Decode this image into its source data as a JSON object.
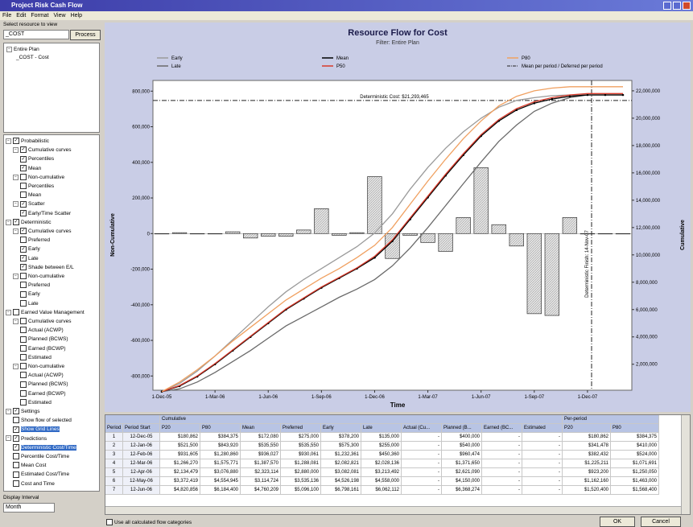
{
  "window": {
    "title": "Project Risk Cash Flow",
    "menu": [
      "File",
      "Edit",
      "Format",
      "View",
      "Help"
    ]
  },
  "left_panel": {
    "filter_label": "Select resource to view",
    "filter_value": "_COST",
    "process_button": "Process",
    "resource_tree": [
      {
        "label": "Entire Plan",
        "level": 0
      },
      {
        "label": "_COST - Cost",
        "level": 1
      }
    ],
    "options": [
      {
        "label": "Probabilistic",
        "level": 0,
        "checked": true
      },
      {
        "label": "Cumulative curves",
        "level": 1,
        "checked": true
      },
      {
        "label": "Percentiles",
        "level": 2,
        "checked": true
      },
      {
        "label": "Mean",
        "level": 2,
        "checked": true
      },
      {
        "label": "Non-cumulative",
        "level": 1,
        "checked": false
      },
      {
        "label": "Percentiles",
        "level": 2,
        "checked": false
      },
      {
        "label": "Mean",
        "level": 2,
        "checked": false
      },
      {
        "label": "Scatter",
        "level": 1,
        "checked": true
      },
      {
        "label": "Early/Time Scatter",
        "level": 2,
        "checked": true
      },
      {
        "label": "Deterministic",
        "level": 0,
        "checked": true
      },
      {
        "label": "Cumulative curves",
        "level": 1,
        "checked": true
      },
      {
        "label": "Preferred",
        "level": 2,
        "checked": false
      },
      {
        "label": "Early",
        "level": 2,
        "checked": true
      },
      {
        "label": "Late",
        "level": 2,
        "checked": true
      },
      {
        "label": "Shade between E/L",
        "level": 2,
        "checked": true
      },
      {
        "label": "Non-cumulative",
        "level": 1,
        "checked": false
      },
      {
        "label": "Preferred",
        "level": 2,
        "checked": false
      },
      {
        "label": "Early",
        "level": 2,
        "checked": false
      },
      {
        "label": "Late",
        "level": 2,
        "checked": false
      },
      {
        "label": "Earned Value Management",
        "level": 0,
        "checked": false
      },
      {
        "label": "Cumulative curves",
        "level": 1,
        "checked": false
      },
      {
        "label": "Actual (ACWP)",
        "level": 2,
        "checked": false
      },
      {
        "label": "Planned (BCWS)",
        "level": 2,
        "checked": false
      },
      {
        "label": "Earned (BCWP)",
        "level": 2,
        "checked": false
      },
      {
        "label": "Estimated",
        "level": 2,
        "checked": false
      },
      {
        "label": "Non-cumulative",
        "level": 1,
        "checked": false
      },
      {
        "label": "Actual (ACWP)",
        "level": 2,
        "checked": false
      },
      {
        "label": "Planned (BCWS)",
        "level": 2,
        "checked": false
      },
      {
        "label": "Earned (BCWP)",
        "level": 2,
        "checked": false
      },
      {
        "label": "Estimated",
        "level": 2,
        "checked": false
      },
      {
        "label": "Settings",
        "level": 0,
        "checked": true
      },
      {
        "label": "Show flow of selected",
        "level": 1,
        "checked": false
      },
      {
        "label": "Show Grid Lines",
        "level": 1,
        "checked": true,
        "selected": true
      },
      {
        "label": "Predictions",
        "level": 0,
        "checked": true
      },
      {
        "label": "Deterministic Cost/Time",
        "level": 1,
        "checked": true,
        "selected": true
      },
      {
        "label": "Percentile Cost/Time",
        "level": 1,
        "checked": false
      },
      {
        "label": "Mean Cost",
        "level": 1,
        "checked": false
      },
      {
        "label": "Estimated Cost/Time",
        "level": 1,
        "checked": false
      },
      {
        "label": "Cost and Time",
        "level": 1,
        "checked": false
      }
    ],
    "interval_label": "Display Interval",
    "interval_value": "Month"
  },
  "chart_data": {
    "type": "combo",
    "title": "Resource Flow for Cost",
    "subtitle": "Filter: Entire Plan",
    "x_label": "Time",
    "y_label": "Non-Cumulative",
    "y2_label": "Cumulative",
    "categories": [
      "1-Dec-05",
      null,
      null,
      "1-Mar-06",
      null,
      null,
      "1-Jun-06",
      null,
      null,
      "1-Sep-06",
      null,
      null,
      "1-Dec-06",
      null,
      null,
      "1-Mar-07",
      null,
      null,
      "1-Jun-07",
      null,
      null,
      "1-Sep-07",
      null,
      null,
      "1-Dec-07",
      null,
      null
    ],
    "ylim": [
      -880000,
      860000
    ],
    "yticks": [
      {
        "value": 800000,
        "label": "800,000"
      },
      {
        "value": 600000,
        "label": "600,000"
      },
      {
        "value": 400000,
        "label": "400,000"
      },
      {
        "value": 200000,
        "label": "200,000"
      },
      0,
      {
        "value": -200000,
        "label": "-200,000"
      },
      {
        "value": -400000,
        "label": "-400,000"
      },
      {
        "value": -600000,
        "label": "-600,000"
      },
      {
        "value": -800000,
        "label": "-800,000"
      }
    ],
    "y2lim": [
      100000,
      22760000
    ],
    "y2ticks": [
      {
        "value": 2000000,
        "label": "2,000,000"
      },
      {
        "value": 4000000,
        "label": "4,000,000"
      },
      {
        "value": 6000000,
        "label": "6,000,000"
      },
      {
        "value": 8000000,
        "label": "8,000,000"
      },
      {
        "value": 10000000,
        "label": "10,000,000"
      },
      {
        "value": 12000000,
        "label": "12,000,000"
      },
      {
        "value": 14000000,
        "label": "14,000,000"
      },
      {
        "value": 16000000,
        "label": "16,000,000"
      },
      {
        "value": 18000000,
        "label": "18,000,000"
      },
      {
        "value": 20000000,
        "label": "20,000,000"
      },
      {
        "value": 22000000,
        "label": "22,000,000"
      }
    ],
    "grid": false,
    "series": [
      {
        "name": "Mean per period / Deferred per period",
        "type": "bar",
        "color": "#d4d4d4",
        "values": [
          0,
          5000,
          0,
          0,
          10000,
          -25000,
          -15000,
          -15000,
          20000,
          140000,
          -10000,
          5000,
          320000,
          -140000,
          -10000,
          -50000,
          -100000,
          90000,
          370000,
          50000,
          -70000,
          -450000,
          -460000,
          90000,
          0,
          0,
          0
        ]
      },
      {
        "name": "Early",
        "type": "line",
        "axis": "y2",
        "color": "#9a9a9a",
        "values": [
          0,
          600,
          1500,
          2600,
          3800,
          5000,
          6200,
          7300,
          8200,
          9000,
          9800,
          10600,
          11600,
          13000,
          14800,
          16400,
          17800,
          19000,
          20000,
          20800,
          21300,
          21500,
          21650,
          21700,
          21700,
          21700,
          21700
        ]
      },
      {
        "name": "Late",
        "type": "line",
        "axis": "y2",
        "color": "#6a6a6a",
        "values": [
          0,
          200,
          700,
          1400,
          2200,
          3000,
          3900,
          4800,
          5500,
          6200,
          6900,
          7500,
          8200,
          9200,
          10500,
          12000,
          13600,
          15200,
          16800,
          18300,
          19500,
          20500,
          21100,
          21500,
          21700,
          21700,
          21700
        ]
      },
      {
        "name": "Mean",
        "type": "line",
        "axis": "y2",
        "color": "#000000",
        "markers": true,
        "values": [
          0,
          400,
          1100,
          2000,
          3000,
          4000,
          5000,
          6000,
          6800,
          7600,
          8300,
          9000,
          9800,
          11000,
          12600,
          14200,
          15800,
          17300,
          18700,
          19800,
          20600,
          21100,
          21400,
          21600,
          21700,
          21700,
          21700
        ]
      },
      {
        "name": "P50",
        "type": "line",
        "axis": "y2",
        "color": "#d83a2a",
        "values": [
          0,
          450,
          1150,
          2050,
          3050,
          4050,
          5050,
          6050,
          6850,
          7650,
          8350,
          9050,
          9900,
          11100,
          12700,
          14300,
          15900,
          17400,
          18800,
          19900,
          20700,
          21200,
          21500,
          21700,
          21800,
          21800,
          21800
        ]
      },
      {
        "name": "P80",
        "type": "line",
        "axis": "y2",
        "color": "#f0a060",
        "values": [
          0,
          700,
          1600,
          2600,
          3700,
          4700,
          5700,
          6700,
          7500,
          8300,
          9000,
          9800,
          10700,
          12000,
          13700,
          15400,
          17000,
          18500,
          19800,
          20900,
          21600,
          22000,
          22200,
          22300,
          22300,
          22300,
          22300
        ]
      }
    ],
    "value_scale_note": null,
    "annotations": [
      {
        "text": "Deterministic Cost: $21,293,465",
        "value": 21293465
      },
      {
        "text": "Deterministic Finish: 14-Nov-07"
      }
    ]
  },
  "table": {
    "groups": [
      "Cumulative",
      "Per-period"
    ],
    "columns": [
      "Period",
      "Period Start",
      "P20",
      "P80",
      "Mean",
      "Preferred",
      "Early",
      "Late",
      "Actual (Cu...",
      "Planned (B...",
      "Earned (BC...",
      "Estimated",
      "P20",
      "P80"
    ],
    "rows": [
      [
        "1",
        "12-Dec-05",
        "$180,862",
        "$384,375",
        "$172,080",
        "$275,000",
        "$378,200",
        "$135,000",
        "-",
        "$400,000",
        "-",
        "-",
        "$180,862",
        "$384,375"
      ],
      [
        "2",
        "12-Jan-06",
        "$521,500",
        "$843,920",
        "$535,550",
        "$535,550",
        "$575,300",
        "$255,000",
        "-",
        "$540,000",
        "-",
        "-",
        "$341,478",
        "$410,000"
      ],
      [
        "3",
        "12-Feb-06",
        "$931,605",
        "$1,280,860",
        "$936,027",
        "$930,061",
        "$1,232,361",
        "$450,360",
        "-",
        "$960,474",
        "-",
        "-",
        "$382,432",
        "$524,000"
      ],
      [
        "4",
        "12-Mar-06",
        "$1,266,270",
        "$1,575,771",
        "$1,387,570",
        "$1,288,081",
        "$2,082,821",
        "$2,028,136",
        "-",
        "$1,371,650",
        "-",
        "-",
        "$1,225,211",
        "$1,071,691"
      ],
      [
        "5",
        "12-Apr-06",
        "$2,134,479",
        "$3,076,880",
        "$2,323,114",
        "$2,880,000",
        "$3,082,081",
        "$3,213,492",
        "-",
        "$2,621,090",
        "-",
        "-",
        "$923,200",
        "$1,250,050"
      ],
      [
        "6",
        "12-May-06",
        "$3,372,419",
        "$4,554,945",
        "$3,114,724",
        "$3,535,136",
        "$4,526,198",
        "$4,558,000",
        "-",
        "$4,150,000",
        "-",
        "-",
        "$1,162,160",
        "$1,463,000"
      ],
      [
        "7",
        "12-Jun-06",
        "$4,820,856",
        "$6,184,400",
        "$4,760,209",
        "$5,096,100",
        "$6,798,161",
        "$6,062,112",
        "-",
        "$6,368,274",
        "-",
        "-",
        "$1,520,400",
        "$1,568,400"
      ]
    ]
  },
  "footer": {
    "checkbox_label": "Use all calculated flow categories",
    "ok_button": "OK",
    "cancel_button": "Cancel"
  }
}
